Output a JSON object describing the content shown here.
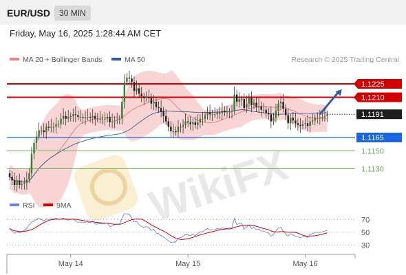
{
  "header": {
    "symbol": "EUR/USD",
    "interval": "30 MIN"
  },
  "datetime": "Friday, May 16, 2025 1:28:44 AM CET",
  "legend": [
    {
      "label": "MA 20 + Bollinger Bands",
      "color": "#f08080"
    },
    {
      "label": "MA 50",
      "color": "#2f5c9e"
    }
  ],
  "credit": "Research © 2025 Trading Central",
  "watermark": "WikiFX",
  "colors": {
    "up": "#3a7d2c",
    "down": "#222222",
    "resistance": "#d20000",
    "support_strong": "#1a66e0",
    "support": "#6aa84f",
    "arrow": "#2f5c9e",
    "rsi": "#6b85d8",
    "rsi_ma": "#d20000",
    "band": "#f7c6c6"
  },
  "chart_data": [
    {
      "type": "candlestick",
      "title": "EUR/USD",
      "interval": "30 MIN",
      "ylim": [
        1.1105,
        1.1245
      ],
      "x_ticks": [
        {
          "label": "May 14",
          "index": 25
        },
        {
          "label": "May 15",
          "index": 73
        },
        {
          "label": "May 16",
          "index": 121
        }
      ],
      "levels": [
        {
          "value": 1.1225,
          "label": "1.1225",
          "kind": "resistance"
        },
        {
          "value": 1.121,
          "label": "1.1210",
          "kind": "resistance"
        },
        {
          "value": 1.1191,
          "label": "1.1191",
          "kind": "current"
        },
        {
          "value": 1.1165,
          "label": "1.1165",
          "kind": "support_strong"
        },
        {
          "value": 1.115,
          "label": "1.1150",
          "kind": "support"
        },
        {
          "value": 1.113,
          "label": "1.1130",
          "kind": "support"
        }
      ],
      "forecast_arrow": {
        "from_index": 127,
        "from_value": 1.1191,
        "to_index": 136,
        "to_value": 1.1219
      },
      "close": [
        1.1121,
        1.1117,
        1.1112,
        1.1117,
        1.1112,
        1.1113,
        1.1114,
        1.1118,
        1.1125,
        1.1147,
        1.1159,
        1.1166,
        1.1173,
        1.1173,
        1.1171,
        1.1177,
        1.1176,
        1.1177,
        1.1177,
        1.118,
        1.118,
        1.1186,
        1.1189,
        1.1186,
        1.1188,
        1.1189,
        1.1191,
        1.119,
        1.1188,
        1.1188,
        1.1187,
        1.1188,
        1.1188,
        1.1187,
        1.1189,
        1.1186,
        1.1186,
        1.1186,
        1.1186,
        1.1186,
        1.1188,
        1.1182,
        1.1183,
        1.1184,
        1.1185,
        1.1186,
        1.1205,
        1.1227,
        1.1232,
        1.1231,
        1.1227,
        1.1217,
        1.122,
        1.1214,
        1.1211,
        1.1209,
        1.121,
        1.1209,
        1.1203,
        1.1205,
        1.1199,
        1.1198,
        1.1194,
        1.1189,
        1.1183,
        1.1177,
        1.1172,
        1.1172,
        1.1171,
        1.1177,
        1.1177,
        1.1179,
        1.1183,
        1.1182,
        1.118,
        1.1182,
        1.1179,
        1.1182,
        1.1186,
        1.1186,
        1.119,
        1.1193,
        1.1191,
        1.1191,
        1.1191,
        1.1193,
        1.1192,
        1.1195,
        1.1193,
        1.1193,
        1.1194,
        1.1195,
        1.1213,
        1.1205,
        1.1208,
        1.1208,
        1.1198,
        1.1203,
        1.1209,
        1.1201,
        1.1204,
        1.1199,
        1.12,
        1.1196,
        1.1196,
        1.1192,
        1.1191,
        1.1183,
        1.1187,
        1.1195,
        1.1203,
        1.1205,
        1.1197,
        1.119,
        1.1181,
        1.1187,
        1.1184,
        1.1181,
        1.1179,
        1.1178,
        1.118,
        1.1181,
        1.1178,
        1.1183,
        1.1184,
        1.1187,
        1.1187,
        1.1187,
        1.1188,
        1.1189,
        1.1191
      ]
    },
    {
      "type": "line",
      "title": "RSI",
      "series": [
        {
          "name": "RSI"
        },
        {
          "name": "9MA"
        }
      ],
      "ylim": [
        20,
        80
      ],
      "y_ticks": [
        70,
        50,
        30
      ],
      "rsi": [
        56,
        52,
        49,
        51,
        49,
        51,
        53,
        56,
        62,
        66,
        68,
        70,
        72,
        70,
        68,
        71,
        70,
        71,
        71,
        72,
        70,
        71,
        72,
        70,
        69,
        70,
        71,
        68,
        66,
        66,
        65,
        66,
        66,
        65,
        67,
        63,
        63,
        64,
        63,
        64,
        65,
        59,
        60,
        62,
        63,
        63,
        72,
        79,
        79,
        78,
        72,
        66,
        67,
        62,
        59,
        58,
        59,
        58,
        53,
        55,
        49,
        48,
        45,
        43,
        40,
        37,
        34,
        35,
        35,
        41,
        42,
        44,
        47,
        46,
        45,
        47,
        45,
        48,
        51,
        51,
        54,
        56,
        54,
        54,
        54,
        56,
        55,
        57,
        56,
        56,
        57,
        58,
        72,
        62,
        64,
        64,
        55,
        58,
        62,
        56,
        58,
        54,
        55,
        52,
        52,
        50,
        49,
        44,
        47,
        52,
        57,
        58,
        52,
        48,
        44,
        48,
        46,
        44,
        43,
        42,
        43,
        44,
        42,
        47,
        48,
        50,
        50,
        50,
        51,
        52,
        53
      ]
    }
  ]
}
